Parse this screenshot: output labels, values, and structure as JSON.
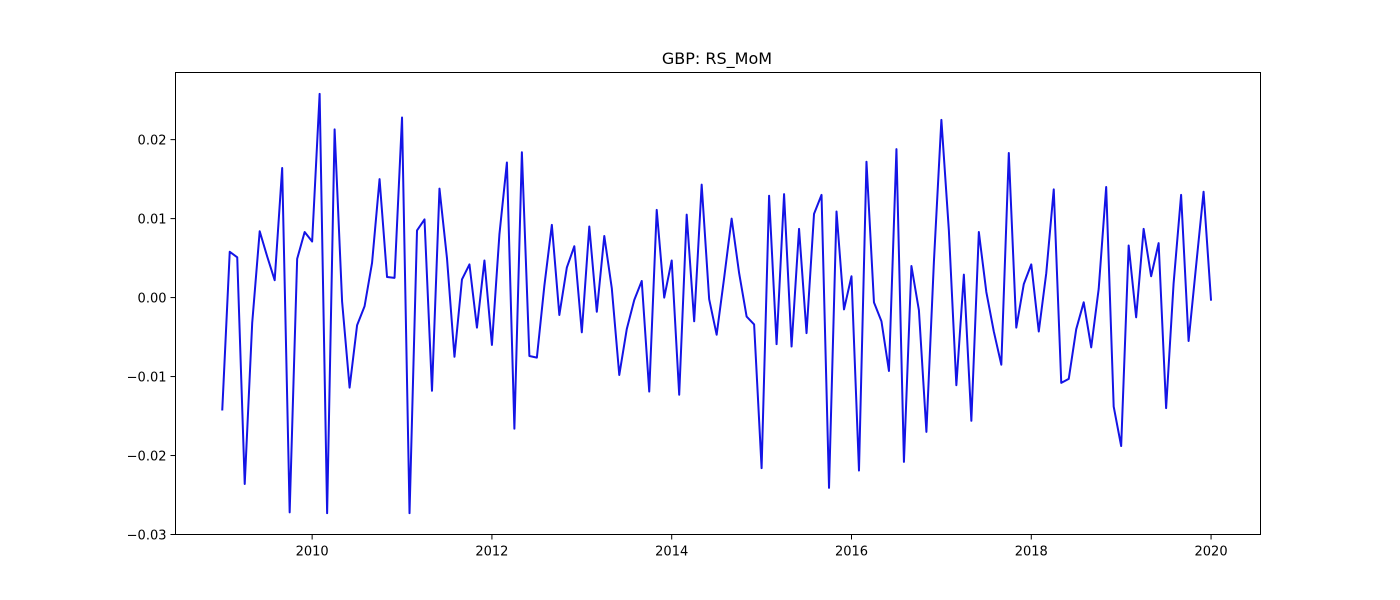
{
  "chart_data": {
    "type": "line",
    "title": "GBP: RS_MoM",
    "xlabel": "",
    "ylabel": "",
    "xlim": [
      2008.48,
      2020.55
    ],
    "ylim": [
      -0.03,
      0.0285
    ],
    "x_ticks": [
      2010,
      2012,
      2014,
      2016,
      2018,
      2020
    ],
    "x_tick_labels": [
      "2010",
      "2012",
      "2014",
      "2016",
      "2018",
      "2020"
    ],
    "y_ticks": [
      -0.03,
      -0.02,
      -0.01,
      0.0,
      0.01,
      0.02
    ],
    "y_tick_labels": [
      "−0.03",
      "−0.02",
      "−0.01",
      "0.00",
      "0.01",
      "0.02"
    ],
    "grid": false,
    "series": [
      {
        "color": "#1414e6",
        "x_start": "2009-01",
        "frequency": "monthly",
        "values": [
          -0.0143,
          0.0058,
          0.0051,
          -0.0236,
          -0.0032,
          0.0084,
          0.0052,
          0.0022,
          0.0164,
          -0.0272,
          0.0049,
          0.0083,
          0.0071,
          0.0258,
          -0.0273,
          0.0213,
          -0.0005,
          -0.0114,
          -0.0035,
          -0.0011,
          0.0044,
          0.015,
          0.0026,
          0.0025,
          0.0228,
          -0.0273,
          0.0085,
          0.0099,
          -0.0118,
          0.0138,
          0.005,
          -0.0075,
          0.0023,
          0.0042,
          -0.0038,
          0.0047,
          -0.006,
          0.008,
          0.0171,
          -0.0166,
          0.0184,
          -0.0074,
          -0.0076,
          0.0015,
          0.0092,
          -0.0022,
          0.0038,
          0.0065,
          -0.0044,
          0.009,
          -0.0018,
          0.0078,
          0.0012,
          -0.0098,
          -0.004,
          -0.0003,
          0.0021,
          -0.0119,
          0.0111,
          0.0,
          0.0047,
          -0.0123,
          0.0105,
          -0.003,
          0.0143,
          -0.0002,
          -0.0047,
          0.0025,
          0.01,
          0.0031,
          -0.0024,
          -0.0034,
          -0.0216,
          0.0129,
          -0.0059,
          0.0131,
          -0.0062,
          0.0087,
          -0.0045,
          0.0106,
          0.013,
          -0.0241,
          0.0109,
          -0.0015,
          0.0027,
          -0.0219,
          0.0172,
          -0.0006,
          -0.003,
          -0.0093,
          0.0188,
          -0.0208,
          0.004,
          -0.0016,
          -0.017,
          0.0045,
          0.0225,
          0.0085,
          -0.0111,
          0.0029,
          -0.0156,
          0.0083,
          0.0007,
          -0.0043,
          -0.0085,
          0.0183,
          -0.0038,
          0.0017,
          0.0042,
          -0.0043,
          0.0031,
          0.0137,
          -0.0108,
          -0.0103,
          -0.004,
          -0.0006,
          -0.0063,
          0.0011,
          0.014,
          -0.0138,
          -0.0188,
          0.0066,
          -0.0025,
          0.0087,
          0.0027,
          0.0069,
          -0.014,
          0.0018,
          0.013,
          -0.0055,
          0.004,
          0.0134,
          -0.0004
        ]
      }
    ]
  }
}
